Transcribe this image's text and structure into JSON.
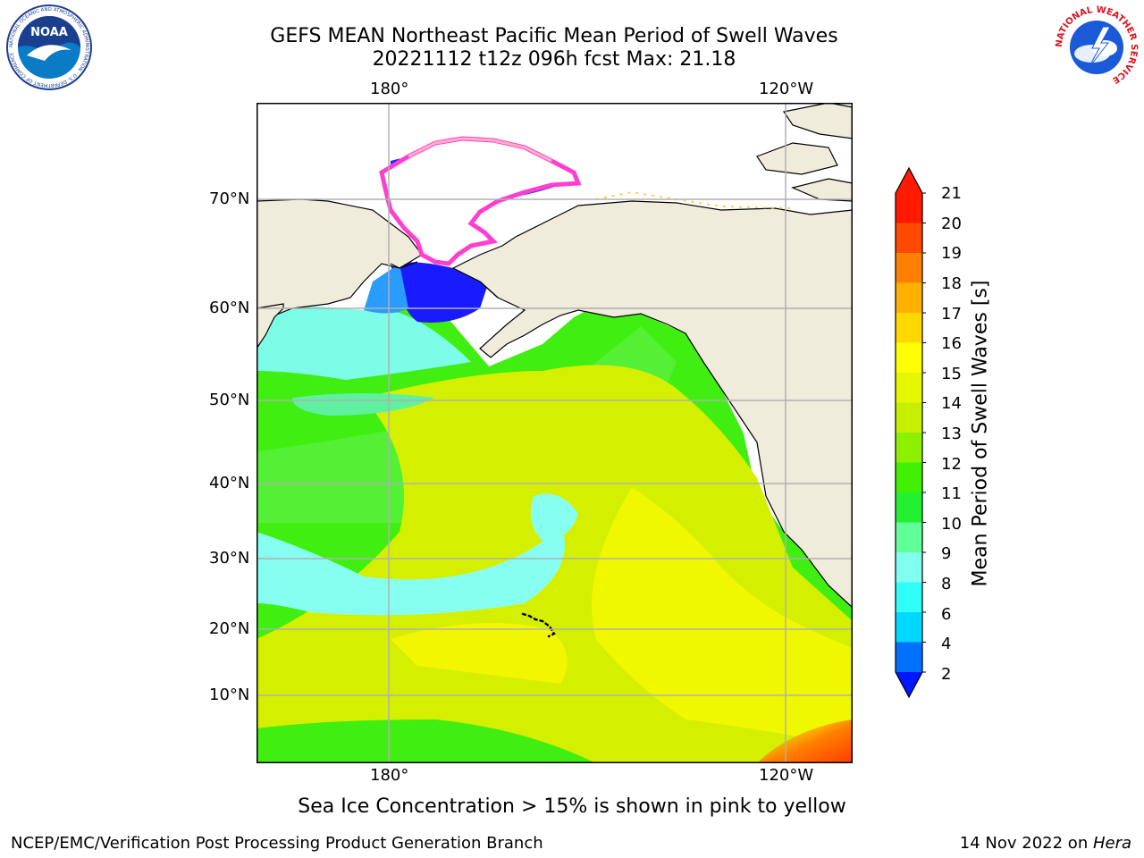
{
  "header": {
    "title": "GEFS MEAN Northeast Pacific Mean Period of Swell Waves",
    "subtitle": "20221112 t12z 096h fcst   Max: 21.18"
  },
  "map": {
    "top_lon_labels": [
      "180°",
      "120°W"
    ],
    "bottom_lon_labels": [
      "180°",
      "120°W"
    ],
    "lat_labels": [
      "70°N",
      "60°N",
      "50°N",
      "40°N",
      "30°N",
      "20°N",
      "10°N"
    ],
    "grid": true,
    "land_color": "#efecdc",
    "ice_colors": [
      "#ff3fd0",
      "#ffb0c8",
      "#ffd040"
    ]
  },
  "colorbar": {
    "label": "Mean Period of Swell Waves [s]",
    "ticks": [
      "21",
      "20",
      "19",
      "18",
      "17",
      "16",
      "15",
      "14",
      "13",
      "12",
      "11",
      "10",
      "9",
      "8",
      "6",
      "4",
      "2"
    ],
    "colors": [
      "#ff1a00",
      "#ff4800",
      "#ff8000",
      "#ffb000",
      "#ffd800",
      "#ffff00",
      "#e6f700",
      "#c6f000",
      "#8cf000",
      "#40f000",
      "#22f030",
      "#60ff9a",
      "#80fff0",
      "#30fff8",
      "#00d8ff",
      "#0070ff"
    ],
    "min_arrow_color": "#0018ff",
    "max_arrow_color": "#ff1a00"
  },
  "footer": {
    "caption": "Sea Ice Concentration > 15% is shown in pink to yellow",
    "credit": "NCEP/EMC/Verification Post Processing Product Generation Branch",
    "date": "14 Nov 2022 on ",
    "machine": "Hera"
  },
  "logos": {
    "noaa": "NOAA",
    "noaa_ring": "NATIONAL OCEANIC AND ATMOSPHERIC ADMINISTRATION · U.S. DEPARTMENT OF COMMERCE",
    "nws_ring": "NATIONAL WEATHER SERVICE"
  }
}
